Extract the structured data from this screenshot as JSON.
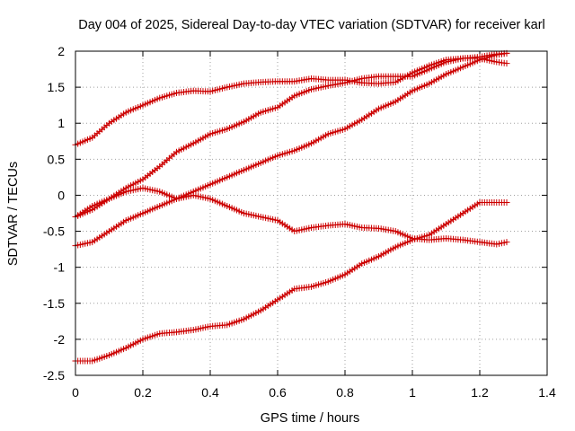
{
  "chart_data": {
    "type": "scatter",
    "title": "Day 004 of 2025, Sidereal Day-to-day VTEC variation (SDTVAR) for receiver karl",
    "xlabel": "GPS time / hours",
    "ylabel": "SDTVAR / TECUs",
    "xlim": [
      0,
      1.4
    ],
    "ylim": [
      -2.5,
      2
    ],
    "xticks": [
      0,
      0.2,
      0.4,
      0.6,
      0.8,
      1,
      1.2,
      1.4
    ],
    "yticks": [
      -2.5,
      -2,
      -1.5,
      -1,
      -0.5,
      0,
      0.5,
      1,
      1.5,
      2
    ],
    "xtick_labels": [
      "0",
      "0.2",
      "0.4",
      "0.6",
      "0.8",
      "1",
      "1.2",
      "1.4"
    ],
    "ytick_labels": [
      "-2.5",
      "-2",
      "-1.5",
      "-1",
      "-0.5",
      "0",
      "0.5",
      "1",
      "1.5",
      "2"
    ],
    "grid": true,
    "marker": "plus",
    "color": "#cc0000",
    "series": [
      {
        "name": "series-1",
        "x": [
          0,
          0.05,
          0.1,
          0.15,
          0.2,
          0.25,
          0.3,
          0.35,
          0.4,
          0.45,
          0.5,
          0.55,
          0.6,
          0.65,
          0.7,
          0.75,
          0.8,
          0.85,
          0.9,
          0.95,
          1.0,
          1.05,
          1.1,
          1.15,
          1.2,
          1.25,
          1.28
        ],
        "values": [
          0.7,
          0.8,
          1.0,
          1.15,
          1.25,
          1.35,
          1.42,
          1.45,
          1.44,
          1.5,
          1.55,
          1.57,
          1.58,
          1.58,
          1.62,
          1.6,
          1.6,
          1.56,
          1.55,
          1.57,
          1.7,
          1.8,
          1.88,
          1.9,
          1.9,
          1.85,
          1.83
        ]
      },
      {
        "name": "series-2",
        "x": [
          0,
          0.05,
          0.1,
          0.15,
          0.2,
          0.25,
          0.3,
          0.35,
          0.4,
          0.45,
          0.5,
          0.55,
          0.6,
          0.65,
          0.7,
          0.75,
          0.8,
          0.85,
          0.9,
          0.95,
          1.0,
          1.05,
          1.1,
          1.15,
          1.2,
          1.25,
          1.28
        ],
        "values": [
          -0.3,
          -0.2,
          -0.05,
          0.05,
          0.1,
          0.05,
          -0.05,
          0.0,
          -0.05,
          -0.15,
          -0.25,
          -0.3,
          -0.35,
          -0.5,
          -0.45,
          -0.42,
          -0.4,
          -0.45,
          -0.46,
          -0.5,
          -0.6,
          -0.62,
          -0.6,
          -0.62,
          -0.65,
          -0.68,
          -0.65
        ]
      },
      {
        "name": "series-3",
        "x": [
          0,
          0.05,
          0.1,
          0.15,
          0.2,
          0.25,
          0.3,
          0.35,
          0.4,
          0.45,
          0.5,
          0.55,
          0.6,
          0.65,
          0.7,
          0.75,
          0.8,
          0.85,
          0.9,
          0.95,
          1.0,
          1.05,
          1.1,
          1.15,
          1.2,
          1.25,
          1.28
        ],
        "values": [
          -0.3,
          -0.15,
          -0.05,
          0.1,
          0.22,
          0.4,
          0.6,
          0.72,
          0.85,
          0.92,
          1.02,
          1.15,
          1.22,
          1.38,
          1.47,
          1.52,
          1.56,
          1.62,
          1.65,
          1.65,
          1.65,
          1.75,
          1.85,
          1.9,
          1.92,
          1.96,
          1.97
        ]
      },
      {
        "name": "series-4",
        "x": [
          0,
          0.05,
          0.1,
          0.15,
          0.2,
          0.25,
          0.3,
          0.35,
          0.4,
          0.45,
          0.5,
          0.55,
          0.6,
          0.65,
          0.7,
          0.75,
          0.8,
          0.85,
          0.9,
          0.95,
          1.0,
          1.05,
          1.1,
          1.15,
          1.2,
          1.25,
          1.28
        ],
        "values": [
          -0.7,
          -0.65,
          -0.5,
          -0.35,
          -0.25,
          -0.15,
          -0.05,
          0.05,
          0.15,
          0.25,
          0.35,
          0.45,
          0.55,
          0.62,
          0.72,
          0.85,
          0.92,
          1.05,
          1.2,
          1.3,
          1.45,
          1.55,
          1.68,
          1.78,
          1.88,
          1.95,
          1.97
        ]
      },
      {
        "name": "series-5",
        "x": [
          0,
          0.05,
          0.1,
          0.15,
          0.2,
          0.25,
          0.3,
          0.35,
          0.4,
          0.45,
          0.5,
          0.55,
          0.6,
          0.65,
          0.7,
          0.75,
          0.8,
          0.85,
          0.9,
          0.95,
          1.0,
          1.05,
          1.1,
          1.15,
          1.2,
          1.25,
          1.28
        ],
        "values": [
          -2.3,
          -2.3,
          -2.22,
          -2.12,
          -2.0,
          -1.92,
          -1.9,
          -1.87,
          -1.82,
          -1.8,
          -1.72,
          -1.6,
          -1.45,
          -1.3,
          -1.27,
          -1.2,
          -1.1,
          -0.95,
          -0.85,
          -0.72,
          -0.62,
          -0.55,
          -0.4,
          -0.25,
          -0.1,
          -0.1,
          -0.1
        ]
      }
    ]
  }
}
